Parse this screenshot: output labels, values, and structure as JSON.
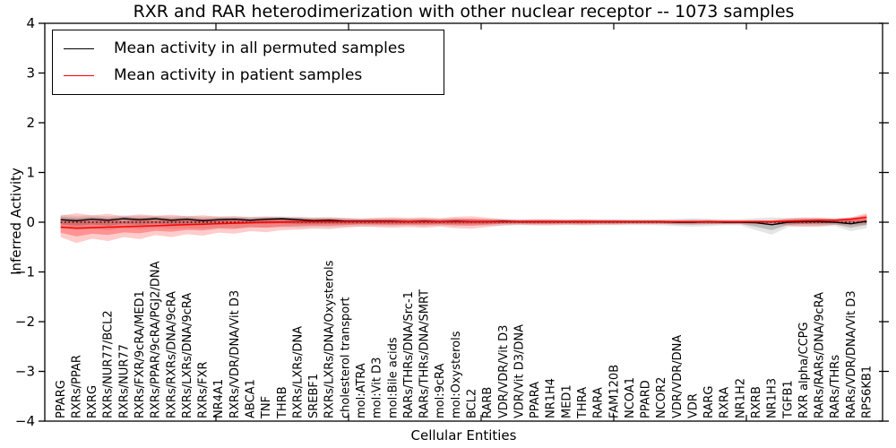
{
  "figure": {
    "title": "RXR and RAR heterodimerization with other nuclear receptor -- 1073 samples",
    "xlabel": "Cellular Entities",
    "ylabel": "Inferred Activity"
  },
  "legend": {
    "position": "upper left",
    "entries": [
      {
        "label": "Mean activity in all permuted samples",
        "color": "#000000"
      },
      {
        "label": "Mean activity in patient samples",
        "color": "#ff0000"
      }
    ]
  },
  "chart_data": {
    "type": "line",
    "title": "RXR and RAR heterodimerization with other nuclear receptor -- 1073 samples",
    "xlabel": "Cellular Entities",
    "ylabel": "Inferred Activity",
    "ylim": [
      -4,
      4
    ],
    "ytick_labels": [
      "−4",
      "−3",
      "−2",
      "−1",
      "0",
      "1",
      "2",
      "3",
      "4"
    ],
    "ytick_values": [
      -4,
      -3,
      -2,
      -1,
      0,
      1,
      2,
      3,
      4
    ],
    "grid": false,
    "legend_position": "upper left",
    "categories": [
      "PPARG",
      "RXRs/PPAR",
      "RXRG",
      "RXRs/NUR77/BCL2",
      "RXRs/NUR77",
      "RXRs/FXR/9cRA/MED1",
      "RXRs/PPAR/9cRA/PGJ2/DNA",
      "RXRs/RXRs/DNA/9cRA",
      "RXRs/LXRs/DNA/9cRA",
      "RXRs/FXR",
      "NR4A1",
      "RXRs/VDR/DNA/Vit D3",
      "ABCA1",
      "TNF",
      "THRB",
      "RXRs/LXRs/DNA",
      "SREBF1",
      "RXRs/LXRs/DNA/Oxysterols",
      "cholesterol transport",
      "mol:ATRA",
      "mol:Vit D3",
      "mol:Bile acids",
      "RARs/THRs/DNA/Src-1",
      "RARs/THRs/DNA/SMRT",
      "mol:9cRA",
      "mol:Oxysterols",
      "BCL2",
      "RARB",
      "VDR/VDR/Vit D3",
      "VDR/Vit D3/DNA",
      "PPARA",
      "NR1H4",
      "MED1",
      "THRA",
      "RARA",
      "FAM120B",
      "NCOA1",
      "PPARD",
      "NCOR2",
      "VDR/VDR/DNA",
      "VDR",
      "RARG",
      "RXRA",
      "NR1H2",
      "RXRB",
      "NR1H3",
      "TGFB1",
      "RXR alpha/CCPG",
      "RARs/RARs/DNA/9cRA",
      "RARs/THRs",
      "RARs/VDR/DNA/Vit D3",
      "RPS6KB1"
    ],
    "series": [
      {
        "name": "Mean activity in all permuted samples",
        "color": "#000000",
        "style": "solid",
        "values": [
          0.05,
          0.03,
          0.06,
          0.04,
          0.07,
          0.05,
          0.07,
          0.04,
          0.06,
          0.03,
          0.05,
          0.06,
          0.04,
          0.06,
          0.07,
          0.05,
          0.03,
          0.04,
          0.02,
          0.02,
          0.02,
          0.02,
          0.01,
          0.02,
          0.01,
          0.02,
          0.01,
          0.01,
          0.02,
          0.01,
          0.01,
          0.01,
          0.01,
          0.01,
          0.01,
          0.01,
          0.01,
          0.01,
          0.01,
          0.0,
          0.0,
          0.01,
          0.0,
          0.0,
          -0.01,
          -0.05,
          0.0,
          0.01,
          0.01,
          0.0,
          -0.03,
          0.02
        ]
      },
      {
        "name": "Mean activity in patient samples",
        "color": "#ff0000",
        "style": "solid",
        "values": [
          -0.1,
          -0.12,
          -0.11,
          -0.1,
          -0.09,
          -0.08,
          -0.07,
          -0.06,
          -0.05,
          -0.04,
          -0.03,
          -0.02,
          -0.01,
          0.0,
          0.0,
          0.01,
          0.01,
          0.01,
          0.01,
          0.01,
          0.01,
          0.01,
          0.01,
          0.01,
          0.01,
          0.01,
          0.01,
          0.01,
          0.01,
          0.01,
          0.01,
          0.01,
          0.01,
          0.01,
          0.01,
          0.01,
          0.01,
          0.01,
          0.01,
          0.01,
          0.01,
          0.01,
          0.01,
          0.01,
          0.01,
          0.01,
          0.02,
          0.03,
          0.04,
          0.04,
          0.06,
          0.1
        ]
      },
      {
        "name": "zero reference",
        "color": "#000000",
        "style": "dotted",
        "constant": 0
      }
    ],
    "bands": [
      {
        "name": "permuted samples range",
        "color": "#000000",
        "opacity": 0.1,
        "upper": [
          0.15,
          0.13,
          0.14,
          0.12,
          0.14,
          0.13,
          0.13,
          0.12,
          0.13,
          0.11,
          0.12,
          0.12,
          0.11,
          0.12,
          0.12,
          0.11,
          0.1,
          0.1,
          0.09,
          0.08,
          0.08,
          0.08,
          0.07,
          0.08,
          0.07,
          0.08,
          0.07,
          0.07,
          0.07,
          0.06,
          0.06,
          0.06,
          0.06,
          0.06,
          0.06,
          0.06,
          0.06,
          0.06,
          0.06,
          0.07,
          0.08,
          0.07,
          0.06,
          0.06,
          0.08,
          0.1,
          0.08,
          0.08,
          0.09,
          0.08,
          0.1,
          0.08
        ],
        "lower": [
          -0.12,
          -0.15,
          -0.13,
          -0.16,
          -0.12,
          -0.14,
          -0.11,
          -0.13,
          -0.12,
          -0.13,
          -0.11,
          -0.12,
          -0.1,
          -0.11,
          -0.1,
          -0.11,
          -0.1,
          -0.1,
          -0.09,
          -0.08,
          -0.08,
          -0.08,
          -0.07,
          -0.08,
          -0.07,
          -0.08,
          -0.07,
          -0.07,
          -0.07,
          -0.06,
          -0.06,
          -0.06,
          -0.06,
          -0.06,
          -0.06,
          -0.06,
          -0.06,
          -0.06,
          -0.06,
          -0.08,
          -0.09,
          -0.08,
          -0.06,
          -0.06,
          -0.16,
          -0.25,
          -0.1,
          -0.08,
          -0.09,
          -0.08,
          -0.18,
          -0.12
        ]
      },
      {
        "name": "patient samples range",
        "color": "#ff0000",
        "opacity": 0.2,
        "upper": [
          0.13,
          0.18,
          0.14,
          0.17,
          0.12,
          0.16,
          0.13,
          0.15,
          0.12,
          0.14,
          0.11,
          0.12,
          0.1,
          0.11,
          0.09,
          0.1,
          0.09,
          0.1,
          0.08,
          0.07,
          0.09,
          0.1,
          0.09,
          0.1,
          0.08,
          0.11,
          0.12,
          0.09,
          0.06,
          0.05,
          0.06,
          0.06,
          0.05,
          0.06,
          0.05,
          0.05,
          0.04,
          0.04,
          0.04,
          0.04,
          0.04,
          0.04,
          0.04,
          0.04,
          0.04,
          0.04,
          0.08,
          0.1,
          0.09,
          0.07,
          0.1,
          0.18
        ],
        "lower": [
          -0.3,
          -0.42,
          -0.33,
          -0.38,
          -0.3,
          -0.34,
          -0.26,
          -0.3,
          -0.24,
          -0.27,
          -0.21,
          -0.23,
          -0.18,
          -0.2,
          -0.16,
          -0.15,
          -0.13,
          -0.14,
          -0.11,
          -0.09,
          -0.1,
          -0.11,
          -0.1,
          -0.11,
          -0.09,
          -0.12,
          -0.13,
          -0.1,
          -0.06,
          -0.05,
          -0.06,
          -0.06,
          -0.05,
          -0.06,
          -0.05,
          -0.05,
          -0.04,
          -0.04,
          -0.04,
          -0.04,
          -0.04,
          -0.04,
          -0.04,
          -0.04,
          -0.04,
          -0.04,
          -0.07,
          -0.09,
          -0.08,
          -0.05,
          -0.06,
          -0.05
        ]
      }
    ]
  }
}
